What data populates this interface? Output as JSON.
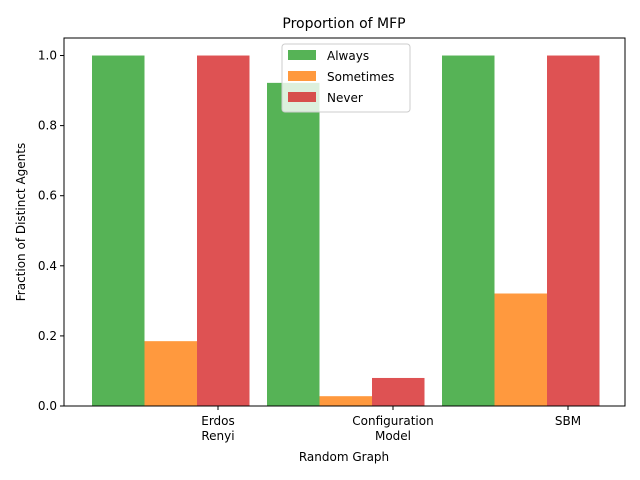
{
  "chart_data": {
    "type": "bar",
    "title": "Proportion of MFP",
    "xlabel": "Random Graph",
    "ylabel": "Fraction of Distinct Agents",
    "categories": [
      [
        "Erdos",
        "Renyi"
      ],
      [
        "Configuration",
        "Model"
      ],
      [
        "SBM"
      ]
    ],
    "series": [
      {
        "name": "Always",
        "color": "#2ca02c",
        "values": [
          1.0,
          0.922,
          1.0
        ]
      },
      {
        "name": "Sometimes",
        "color": "#ff7f0e",
        "values": [
          0.185,
          0.028,
          0.321
        ]
      },
      {
        "name": "Never",
        "color": "#d62728",
        "values": [
          1.0,
          0.08,
          1.0
        ]
      }
    ],
    "ylim": [
      0,
      1.05
    ],
    "yticks": [
      "0.0",
      "0.2",
      "0.4",
      "0.6",
      "0.8",
      "1.0"
    ],
    "bar_opacity": 0.8,
    "legend": "upper center",
    "grid": false
  }
}
